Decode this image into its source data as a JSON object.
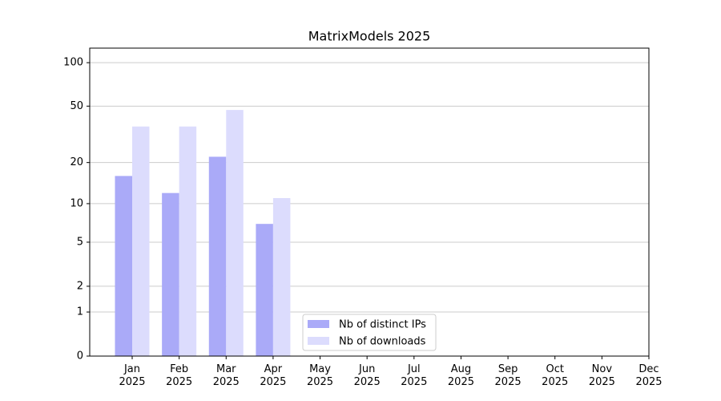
{
  "chart_data": {
    "type": "bar",
    "title": "MatrixModels 2025",
    "categories": [
      "Jan 2025",
      "Feb 2025",
      "Mar 2025",
      "Apr 2025",
      "May 2025",
      "Jun 2025",
      "Jul 2025",
      "Aug 2025",
      "Sep 2025",
      "Oct 2025",
      "Nov 2025",
      "Dec 2025"
    ],
    "series": [
      {
        "name": "Nb of distinct IPs",
        "color": "#aaaaf8",
        "values": [
          16,
          12,
          22,
          7,
          null,
          null,
          null,
          null,
          null,
          null,
          null,
          null
        ]
      },
      {
        "name": "Nb of downloads",
        "color": "#dcdcfd",
        "values": [
          36,
          36,
          47,
          11,
          null,
          null,
          null,
          null,
          null,
          null,
          null,
          null
        ]
      }
    ],
    "y_scale": "log1p",
    "ylim": [
      0,
      126
    ],
    "yticks": [
      0,
      1,
      2,
      5,
      10,
      20,
      50,
      100
    ],
    "grid": true,
    "legend": "lower center"
  }
}
